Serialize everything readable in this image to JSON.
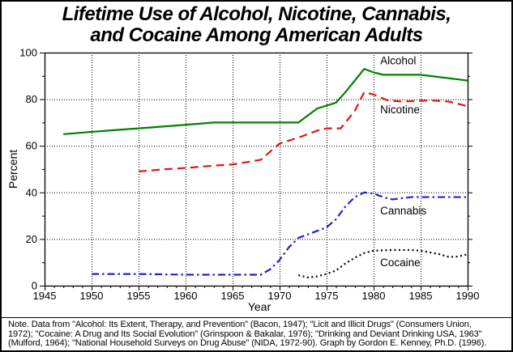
{
  "title": {
    "lines": [
      "Lifetime Use of Alcohol, Nicotine, Cannabis,",
      "and Cocaine Among American Adults"
    ]
  },
  "chart_data": {
    "type": "line",
    "title": "Lifetime Use of Alcohol, Nicotine, Cannabis, and Cocaine Among American Adults",
    "xlabel": "Year",
    "ylabel": "Percent",
    "xlim": [
      1945,
      1990
    ],
    "ylim": [
      0,
      100
    ],
    "x_major_ticks": [
      1945,
      1950,
      1955,
      1960,
      1965,
      1970,
      1975,
      1980,
      1985,
      1990
    ],
    "x_minor_step": 1,
    "y_major_ticks": [
      0,
      20,
      40,
      60,
      80,
      100
    ],
    "y_minor_step": 10,
    "grid": "dotted lines at 5-year and 20-percent majors",
    "legend_position": "inline labels beside lines",
    "series": [
      {
        "name": "Alcohol",
        "color": "#008000",
        "style": "solid",
        "label_at": [
          1980.7,
          95.0
        ],
        "points": [
          [
            1947,
            65
          ],
          [
            1950,
            66
          ],
          [
            1955,
            67.5
          ],
          [
            1960,
            69
          ],
          [
            1963,
            70
          ],
          [
            1972,
            70
          ],
          [
            1974,
            76
          ],
          [
            1976,
            78.5
          ],
          [
            1977,
            83
          ],
          [
            1978,
            88
          ],
          [
            1979,
            93
          ],
          [
            1980,
            91.5
          ],
          [
            1981,
            90.5
          ],
          [
            1985,
            90.5
          ],
          [
            1987,
            89.5
          ],
          [
            1990,
            88
          ]
        ]
      },
      {
        "name": "Nicotine",
        "color": "#dd1515",
        "style": "dashed",
        "label_at": [
          1980.7,
          74.0
        ],
        "points": [
          [
            1955,
            49
          ],
          [
            1958,
            50
          ],
          [
            1960,
            50.5
          ],
          [
            1963,
            51.5
          ],
          [
            1965,
            52
          ],
          [
            1968,
            54
          ],
          [
            1970,
            61
          ],
          [
            1972,
            63.5
          ],
          [
            1974,
            66.5
          ],
          [
            1975,
            67.5
          ],
          [
            1976.5,
            67.5
          ],
          [
            1978,
            75
          ],
          [
            1979,
            83
          ],
          [
            1980,
            82
          ],
          [
            1981.5,
            79.5
          ],
          [
            1983,
            79
          ],
          [
            1986,
            79.5
          ],
          [
            1988,
            79
          ],
          [
            1990,
            77
          ]
        ]
      },
      {
        "name": "Cannabis",
        "color": "#2222cc",
        "style": "dash-dot",
        "label_at": [
          1980.7,
          30.5
        ],
        "points": [
          [
            1950,
            5
          ],
          [
            1955,
            5
          ],
          [
            1960,
            4.7
          ],
          [
            1968,
            4.7
          ],
          [
            1969,
            7
          ],
          [
            1970,
            11
          ],
          [
            1971,
            16.5
          ],
          [
            1972,
            20.5
          ],
          [
            1973,
            22
          ],
          [
            1974,
            23.5
          ],
          [
            1975,
            25
          ],
          [
            1976,
            28.5
          ],
          [
            1977,
            34
          ],
          [
            1978,
            38
          ],
          [
            1979,
            40
          ],
          [
            1980,
            39.5
          ],
          [
            1981,
            38
          ],
          [
            1982,
            37
          ],
          [
            1983,
            37.5
          ],
          [
            1984,
            38
          ],
          [
            1990,
            38
          ]
        ]
      },
      {
        "name": "Cocaine",
        "color": "#000000",
        "style": "dotted",
        "label_at": [
          1980.7,
          8.3
        ],
        "points": [
          [
            1972,
            4.5
          ],
          [
            1973,
            3.5
          ],
          [
            1974,
            4
          ],
          [
            1975,
            5
          ],
          [
            1976,
            6.5
          ],
          [
            1977,
            9.5
          ],
          [
            1978,
            12
          ],
          [
            1979,
            14
          ],
          [
            1980,
            15
          ],
          [
            1982,
            15.3
          ],
          [
            1984,
            15.3
          ],
          [
            1985,
            15
          ],
          [
            1987,
            13.5
          ],
          [
            1988,
            12.3
          ],
          [
            1989,
            12.5
          ],
          [
            1990,
            13.5
          ]
        ]
      }
    ]
  },
  "note": {
    "lines": [
      "Note.  Data from \"Alcohol: Its Extent, Therapy, and Prevention\" (Bacon, 1947); \"Licit and Illicit Drugs\" (Consumers Union,",
      "1972); \"Cocaine: A Drug and Its Social Evolution\" (Grinspoon & Bakalar, 1976); \"Drinking and Deviant Drinking USA, 1963\"",
      "(Mulford, 1964); \"National Household Surveys on Drug Abuse\" (NIDA, 1972-90).  Graph by Gordon E. Kenney, Ph.D. (1996)."
    ]
  }
}
